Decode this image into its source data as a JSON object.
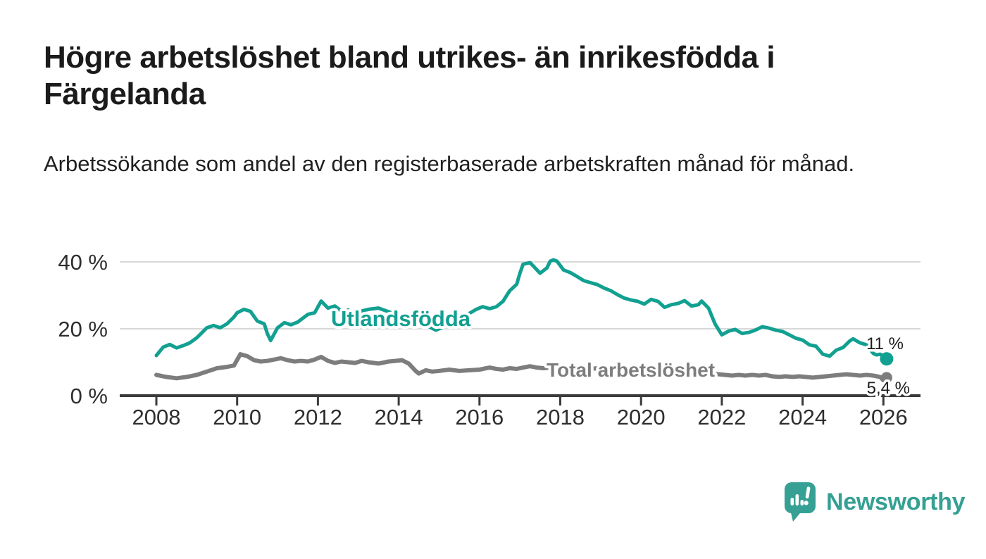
{
  "header": {
    "title": "Högre arbetslöshet bland utrikes- än inrikesfödda i Färgelanda",
    "subtitle": "Arbetssökande som andel av den registerbaserade arbetskraften månad för månad."
  },
  "footer": {
    "brand": "Newsworthy",
    "brand_color": "#35a093"
  },
  "chart_data": {
    "type": "line",
    "title": "Högre arbetslöshet bland utrikes- än inrikesfödda i Färgelanda",
    "xlabel": "",
    "ylabel": "",
    "unit": "%",
    "x_range": [
      2007.1,
      2026.9
    ],
    "ylim": [
      0,
      43
    ],
    "grid": "horizontal",
    "legend_position": "inline-labels",
    "x_ticks": [
      2008,
      2010,
      2012,
      2014,
      2016,
      2018,
      2020,
      2022,
      2024,
      2026
    ],
    "y_ticks": [
      {
        "value": 0,
        "label": "0 %"
      },
      {
        "value": 20,
        "label": "20 %"
      },
      {
        "value": 40,
        "label": "40 %"
      }
    ],
    "series": [
      {
        "name": "Utlandsfödda",
        "color": "#12a091",
        "end_label": "11 %",
        "end_value": 11,
        "points": [
          [
            2008.0,
            12
          ],
          [
            2008.17,
            14.5
          ],
          [
            2008.33,
            15.3
          ],
          [
            2008.5,
            14.3
          ],
          [
            2008.67,
            15.0
          ],
          [
            2008.83,
            15.8
          ],
          [
            2009.0,
            17.3
          ],
          [
            2009.25,
            20.3
          ],
          [
            2009.42,
            21.0
          ],
          [
            2009.58,
            20.3
          ],
          [
            2009.75,
            21.5
          ],
          [
            2009.92,
            23.5
          ],
          [
            2010.0,
            24.8
          ],
          [
            2010.17,
            25.8
          ],
          [
            2010.33,
            25.2
          ],
          [
            2010.5,
            22.3
          ],
          [
            2010.67,
            21.5
          ],
          [
            2010.75,
            18.5
          ],
          [
            2010.83,
            16.5
          ],
          [
            2011.0,
            20.3
          ],
          [
            2011.17,
            21.8
          ],
          [
            2011.33,
            21.2
          ],
          [
            2011.5,
            22.0
          ],
          [
            2011.75,
            24.3
          ],
          [
            2011.92,
            24.8
          ],
          [
            2012.08,
            28.3
          ],
          [
            2012.25,
            26.2
          ],
          [
            2012.42,
            26.8
          ],
          [
            2012.58,
            25.3
          ],
          [
            2012.75,
            25.6
          ],
          [
            2012.92,
            24.6
          ],
          [
            2013.08,
            25.3
          ],
          [
            2013.25,
            25.8
          ],
          [
            2013.5,
            26.2
          ],
          [
            2013.75,
            25.1
          ],
          [
            2013.92,
            24.4
          ],
          [
            2014.08,
            24.2
          ],
          [
            2014.25,
            23.6
          ],
          [
            2014.42,
            22.2
          ],
          [
            2014.58,
            21.4
          ],
          [
            2014.75,
            20.6
          ],
          [
            2014.92,
            19.6
          ],
          [
            2015.08,
            20.4
          ],
          [
            2015.25,
            21.3
          ],
          [
            2015.5,
            22.4
          ],
          [
            2015.75,
            24.6
          ],
          [
            2015.92,
            25.8
          ],
          [
            2016.08,
            26.6
          ],
          [
            2016.25,
            26.0
          ],
          [
            2016.42,
            26.6
          ],
          [
            2016.58,
            28.2
          ],
          [
            2016.75,
            31.4
          ],
          [
            2016.92,
            33.3
          ],
          [
            2017.0,
            36.5
          ],
          [
            2017.08,
            39.3
          ],
          [
            2017.25,
            39.8
          ],
          [
            2017.33,
            38.8
          ],
          [
            2017.5,
            36.6
          ],
          [
            2017.67,
            38.2
          ],
          [
            2017.75,
            40.2
          ],
          [
            2017.83,
            40.6
          ],
          [
            2017.92,
            40.2
          ],
          [
            2018.08,
            37.6
          ],
          [
            2018.25,
            36.8
          ],
          [
            2018.42,
            35.6
          ],
          [
            2018.58,
            34.4
          ],
          [
            2018.75,
            33.8
          ],
          [
            2018.92,
            33.2
          ],
          [
            2019.08,
            32.2
          ],
          [
            2019.25,
            31.4
          ],
          [
            2019.42,
            30.2
          ],
          [
            2019.58,
            29.2
          ],
          [
            2019.75,
            28.6
          ],
          [
            2019.92,
            28.2
          ],
          [
            2020.08,
            27.4
          ],
          [
            2020.25,
            28.8
          ],
          [
            2020.42,
            28.2
          ],
          [
            2020.58,
            26.4
          ],
          [
            2020.75,
            27.2
          ],
          [
            2020.92,
            27.6
          ],
          [
            2021.08,
            28.4
          ],
          [
            2021.25,
            26.8
          ],
          [
            2021.42,
            27.2
          ],
          [
            2021.5,
            28.3
          ],
          [
            2021.67,
            26.2
          ],
          [
            2021.83,
            21.5
          ],
          [
            2022.0,
            18.2
          ],
          [
            2022.17,
            19.3
          ],
          [
            2022.33,
            19.8
          ],
          [
            2022.5,
            18.6
          ],
          [
            2022.67,
            18.9
          ],
          [
            2022.83,
            19.6
          ],
          [
            2023.0,
            20.6
          ],
          [
            2023.17,
            20.2
          ],
          [
            2023.33,
            19.6
          ],
          [
            2023.5,
            19.2
          ],
          [
            2023.67,
            18.2
          ],
          [
            2023.83,
            17.2
          ],
          [
            2024.0,
            16.6
          ],
          [
            2024.17,
            15.2
          ],
          [
            2024.33,
            14.8
          ],
          [
            2024.5,
            12.4
          ],
          [
            2024.67,
            11.8
          ],
          [
            2024.83,
            13.6
          ],
          [
            2025.0,
            14.4
          ],
          [
            2025.17,
            16.4
          ],
          [
            2025.25,
            17.0
          ],
          [
            2025.42,
            15.8
          ],
          [
            2025.58,
            15.2
          ],
          [
            2025.75,
            12.6
          ],
          [
            2025.83,
            12.2
          ],
          [
            2025.92,
            12.4
          ],
          [
            2026.0,
            11.8
          ],
          [
            2026.08,
            11
          ]
        ]
      },
      {
        "name": "Total arbetslöshet",
        "color": "#7d7d7d",
        "end_label": "5,4 %",
        "end_value": 5.4,
        "points": [
          [
            2008.0,
            6.2
          ],
          [
            2008.25,
            5.6
          ],
          [
            2008.5,
            5.2
          ],
          [
            2008.75,
            5.6
          ],
          [
            2009.0,
            6.2
          ],
          [
            2009.25,
            7.2
          ],
          [
            2009.5,
            8.2
          ],
          [
            2009.75,
            8.6
          ],
          [
            2009.92,
            9.0
          ],
          [
            2010.08,
            12.4
          ],
          [
            2010.25,
            11.8
          ],
          [
            2010.42,
            10.6
          ],
          [
            2010.58,
            10.2
          ],
          [
            2010.75,
            10.4
          ],
          [
            2010.92,
            10.8
          ],
          [
            2011.08,
            11.2
          ],
          [
            2011.25,
            10.6
          ],
          [
            2011.42,
            10.2
          ],
          [
            2011.58,
            10.4
          ],
          [
            2011.75,
            10.2
          ],
          [
            2011.92,
            10.8
          ],
          [
            2012.08,
            11.6
          ],
          [
            2012.25,
            10.4
          ],
          [
            2012.42,
            9.8
          ],
          [
            2012.58,
            10.2
          ],
          [
            2012.75,
            10.0
          ],
          [
            2012.92,
            9.8
          ],
          [
            2013.08,
            10.4
          ],
          [
            2013.25,
            10.0
          ],
          [
            2013.5,
            9.6
          ],
          [
            2013.75,
            10.2
          ],
          [
            2013.92,
            10.4
          ],
          [
            2014.08,
            10.6
          ],
          [
            2014.25,
            9.6
          ],
          [
            2014.42,
            7.4
          ],
          [
            2014.5,
            6.6
          ],
          [
            2014.67,
            7.6
          ],
          [
            2014.83,
            7.2
          ],
          [
            2015.0,
            7.4
          ],
          [
            2015.25,
            7.8
          ],
          [
            2015.5,
            7.4
          ],
          [
            2015.75,
            7.6
          ],
          [
            2016.0,
            7.8
          ],
          [
            2016.25,
            8.4
          ],
          [
            2016.42,
            8.0
          ],
          [
            2016.58,
            7.8
          ],
          [
            2016.75,
            8.2
          ],
          [
            2016.92,
            8.0
          ],
          [
            2017.08,
            8.4
          ],
          [
            2017.25,
            8.8
          ],
          [
            2017.42,
            8.4
          ],
          [
            2017.58,
            8.2
          ],
          [
            2017.75,
            8.4
          ],
          [
            2017.92,
            8.2
          ],
          [
            2018.08,
            8.0
          ],
          [
            2018.25,
            7.8
          ],
          [
            2018.42,
            8.0
          ],
          [
            2018.58,
            8.2
          ],
          [
            2018.75,
            8.0
          ],
          [
            2018.92,
            8.2
          ],
          [
            2019.08,
            8.4
          ],
          [
            2019.25,
            8.2
          ],
          [
            2019.42,
            8.0
          ],
          [
            2019.58,
            7.6
          ],
          [
            2019.75,
            7.4
          ],
          [
            2019.92,
            7.2
          ],
          [
            2020.08,
            7.4
          ],
          [
            2020.25,
            7.6
          ],
          [
            2020.42,
            7.4
          ],
          [
            2020.58,
            7.2
          ],
          [
            2020.75,
            7.0
          ],
          [
            2020.92,
            7.2
          ],
          [
            2021.08,
            7.0
          ],
          [
            2021.25,
            6.8
          ],
          [
            2021.42,
            6.6
          ],
          [
            2021.58,
            6.8
          ],
          [
            2021.75,
            6.6
          ],
          [
            2021.92,
            6.4
          ],
          [
            2022.08,
            6.2
          ],
          [
            2022.25,
            6.0
          ],
          [
            2022.42,
            6.2
          ],
          [
            2022.58,
            6.0
          ],
          [
            2022.75,
            6.2
          ],
          [
            2022.92,
            6.0
          ],
          [
            2023.08,
            6.2
          ],
          [
            2023.25,
            5.8
          ],
          [
            2023.42,
            5.6
          ],
          [
            2023.58,
            5.8
          ],
          [
            2023.75,
            5.6
          ],
          [
            2023.92,
            5.8
          ],
          [
            2024.08,
            5.6
          ],
          [
            2024.25,
            5.4
          ],
          [
            2024.42,
            5.6
          ],
          [
            2024.58,
            5.8
          ],
          [
            2024.75,
            6.0
          ],
          [
            2024.92,
            6.2
          ],
          [
            2025.08,
            6.4
          ],
          [
            2025.25,
            6.2
          ],
          [
            2025.42,
            6.0
          ],
          [
            2025.58,
            6.2
          ],
          [
            2025.75,
            6.0
          ],
          [
            2025.92,
            5.6
          ],
          [
            2026.0,
            4.6
          ],
          [
            2026.08,
            5.4
          ]
        ]
      }
    ]
  }
}
